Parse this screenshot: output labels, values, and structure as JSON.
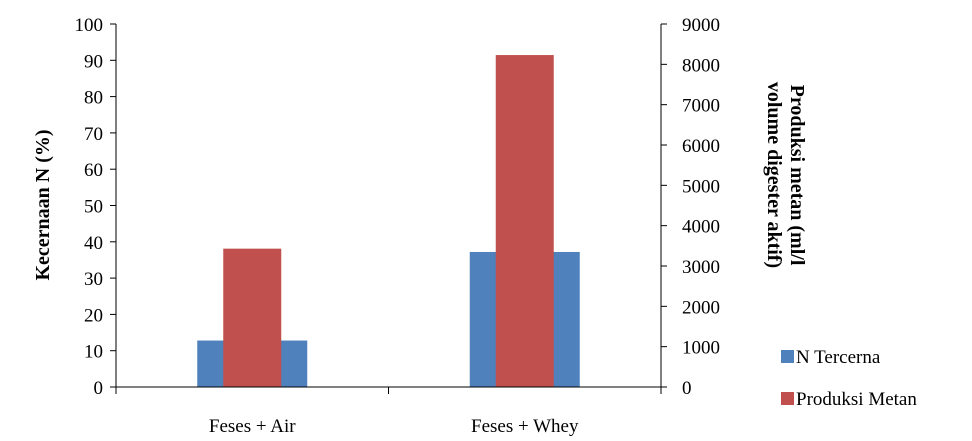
{
  "chart_data": {
    "type": "bar",
    "categories": [
      "Feses + Air",
      "Feses + Whey"
    ],
    "series": [
      {
        "name": "N Tercerna",
        "axis": "left",
        "color": "#4F81BD",
        "values": [
          12.8,
          37.2
        ]
      },
      {
        "name": "Produksi Metan",
        "axis": "right",
        "color": "#C0504D",
        "values": [
          3430,
          8230
        ]
      }
    ],
    "ylabel": "Kecernaan N (%)",
    "ylabel_right_lines": [
      "Produksi metan (ml/l",
      "volume digester aktif)"
    ],
    "ylim": [
      0,
      100
    ],
    "ylim_right": [
      0,
      9000
    ],
    "yticks": [
      0,
      10,
      20,
      30,
      40,
      50,
      60,
      70,
      80,
      90,
      100
    ],
    "yticks_right": [
      0,
      1000,
      2000,
      3000,
      4000,
      5000,
      6000,
      7000,
      8000,
      9000
    ],
    "grid": false,
    "legend": "bottom-right"
  }
}
